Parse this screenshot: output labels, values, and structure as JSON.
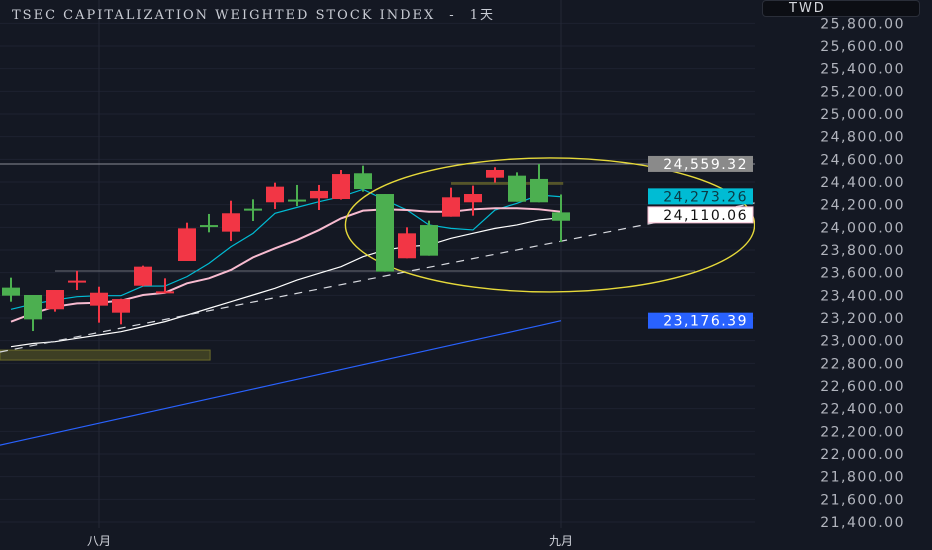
{
  "header": {
    "symbol_title": "TSEC CAPITALIZATION WEIGHTED STOCK INDEX",
    "separator": "-",
    "interval": "1天",
    "currency": "TWD"
  },
  "colors": {
    "background": "#141823",
    "up_candle": "#f23645",
    "down_candle": "#4caf50",
    "ma_cyan": "#00bcd4",
    "ma_pink": "#f8bbd0",
    "ma_white": "#ffffff",
    "ma_blue": "#2962ff",
    "ellipse": "#e6d93a",
    "highlight_box": "#4a4a2a"
  },
  "chart_data": {
    "type": "candlestick",
    "title": "TSEC CAPITALIZATION WEIGHTED STOCK INDEX - 1天",
    "ylim": [
      21400,
      25800
    ],
    "y_ticks": [
      "25,800.00",
      "25,600.00",
      "25,400.00",
      "25,200.00",
      "25,000.00",
      "24,800.00",
      "24,600.00",
      "24,400.00",
      "24,200.00",
      "24,000.00",
      "23,800.00",
      "23,600.00",
      "23,400.00",
      "23,200.00",
      "23,000.00",
      "22,800.00",
      "22,600.00",
      "22,400.00",
      "22,200.00",
      "22,000.00",
      "21,800.00",
      "21,600.00",
      "21,400.00"
    ],
    "x_labels": [
      {
        "label": "八月",
        "index": 4
      },
      {
        "label": "九月",
        "index": 25
      }
    ],
    "grid": true,
    "candles": [
      {
        "o": 23468,
        "h": 23556,
        "l": 23344,
        "c": 23397
      },
      {
        "o": 23403,
        "h": 23403,
        "l": 23085,
        "c": 23188
      },
      {
        "o": 23277,
        "h": 23447,
        "l": 23256,
        "c": 23447
      },
      {
        "o": 23520,
        "h": 23617,
        "l": 23447,
        "c": 23530
      },
      {
        "o": 23309,
        "h": 23476,
        "l": 23159,
        "c": 23423
      },
      {
        "o": 23247,
        "h": 23370,
        "l": 23144,
        "c": 23367
      },
      {
        "o": 23485,
        "h": 23662,
        "l": 23480,
        "c": 23653
      },
      {
        "o": 23430,
        "h": 23550,
        "l": 23423,
        "c": 23435
      },
      {
        "o": 23703,
        "h": 24041,
        "l": 23703,
        "c": 23991
      },
      {
        "o": 24020,
        "h": 24118,
        "l": 23956,
        "c": 24015
      },
      {
        "o": 23962,
        "h": 24235,
        "l": 23879,
        "c": 24124
      },
      {
        "o": 24165,
        "h": 24247,
        "l": 24056,
        "c": 24158
      },
      {
        "o": 24221,
        "h": 24394,
        "l": 24162,
        "c": 24359
      },
      {
        "o": 24245,
        "h": 24374,
        "l": 24188,
        "c": 24240
      },
      {
        "o": 24256,
        "h": 24374,
        "l": 24153,
        "c": 24321
      },
      {
        "o": 24250,
        "h": 24506,
        "l": 24245,
        "c": 24470
      },
      {
        "o": 24477,
        "h": 24544,
        "l": 24315,
        "c": 24338
      },
      {
        "o": 24294,
        "h": 24294,
        "l": 23609,
        "c": 23609
      },
      {
        "o": 23727,
        "h": 24000,
        "l": 23727,
        "c": 23947
      },
      {
        "o": 24020,
        "h": 24059,
        "l": 23750,
        "c": 23750
      },
      {
        "o": 24094,
        "h": 24350,
        "l": 24094,
        "c": 24265
      },
      {
        "o": 24221,
        "h": 24368,
        "l": 24103,
        "c": 24294
      },
      {
        "o": 24438,
        "h": 24530,
        "l": 24394,
        "c": 24506
      },
      {
        "o": 24456,
        "h": 24485,
        "l": 24226,
        "c": 24226
      },
      {
        "o": 24427,
        "h": 24559,
        "l": 24221,
        "c": 24221
      },
      {
        "o": 24132,
        "h": 24290,
        "l": 23870,
        "c": 24058
      }
    ],
    "series": [
      {
        "color_key": "ma_cyan",
        "values": [
          23277,
          23323,
          23359,
          23388,
          23397,
          23397,
          23482,
          23482,
          23565,
          23682,
          23829,
          23947,
          24124,
          24176,
          24226,
          24270,
          24335,
          24241,
          24153,
          24021,
          23991,
          23977,
          24153,
          24212,
          24285,
          24270
        ]
      },
      {
        "color_key": "ma_pink",
        "values": [
          23168,
          23241,
          23300,
          23329,
          23335,
          23353,
          23403,
          23423,
          23506,
          23550,
          23624,
          23735,
          23815,
          23888,
          23976,
          24079,
          24147,
          24159,
          24153,
          24138,
          24138,
          24159,
          24168,
          24168,
          24159,
          24138
        ]
      },
      {
        "color_key": "ma_white",
        "values": [
          22947,
          22975,
          22991,
          23021,
          23050,
          23079,
          23124,
          23168,
          23226,
          23285,
          23344,
          23403,
          23462,
          23535,
          23594,
          23653,
          23741,
          23800,
          23829,
          23844,
          23903,
          23947,
          23991,
          24021,
          24065,
          24085
        ]
      },
      {
        "color_key": "ma_blue",
        "values": [
          22100,
          22143,
          22186,
          22229,
          22272,
          22315,
          22358,
          22401,
          22444,
          22487,
          22530,
          22573,
          22616,
          22659,
          22702,
          22745,
          22788,
          22831,
          22874,
          22917,
          22960,
          23003,
          23046,
          23089,
          23132,
          23176
        ]
      }
    ],
    "drawings": {
      "trendline": {
        "from": {
          "index": -0.5,
          "price": 22900
        },
        "to": {
          "index": 33.8,
          "price": 24215
        },
        "style": "dashed"
      },
      "resistance_line": {
        "price": 24559.32
      },
      "support_line": {
        "from_index": 2,
        "to_index": 31.1,
        "price": 23615
      },
      "ellipse": {
        "center_index": 24.5,
        "center_price": 24021,
        "radius_bars": 9.3,
        "radius_price": 591
      },
      "box_upper": {
        "from_index": 20,
        "to_index": 25.1,
        "price_top": 24400,
        "price_bottom": 24375
      },
      "box_lower": {
        "from_index": -0.5,
        "to_index": 9.05,
        "price_top": 22917,
        "price_bottom": 22829
      }
    },
    "price_labels": [
      {
        "text": "24,559.32",
        "price": 24559.32,
        "bg": "#8a8a8a",
        "fg": "#ffffff"
      },
      {
        "text": "24,273.26",
        "price": 24273.26,
        "bg": "#00bcd4",
        "fg": "#0b3a44"
      },
      {
        "text": "24,110.06",
        "price": 24110.06,
        "bg": "#ffffff",
        "fg": "#111111",
        "border": "#f8bbd0"
      },
      {
        "text": "23,176.39",
        "price": 23176.39,
        "bg": "#2962ff",
        "fg": "#ffffff"
      }
    ]
  }
}
